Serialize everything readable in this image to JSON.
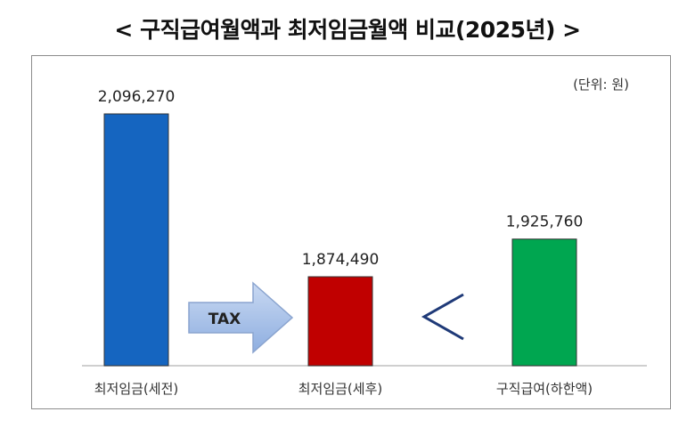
{
  "chart_data": {
    "type": "bar",
    "title": "< 구직급여월액과 최저임금월액 비교(2025년) >",
    "unit_label": "(단위: 원)",
    "categories": [
      "최저임금(세전)",
      "최저임금(세후)",
      "구직급여(하한액)"
    ],
    "values": [
      2096270,
      1874490,
      1925760
    ],
    "value_labels": [
      "2,096,270",
      "1,874,490",
      "1,925,760"
    ],
    "colors": [
      "#1565c0",
      "#c00000",
      "#00a650"
    ],
    "arrow_label": "TAX",
    "comparison_symbol": "<",
    "grid": false
  }
}
